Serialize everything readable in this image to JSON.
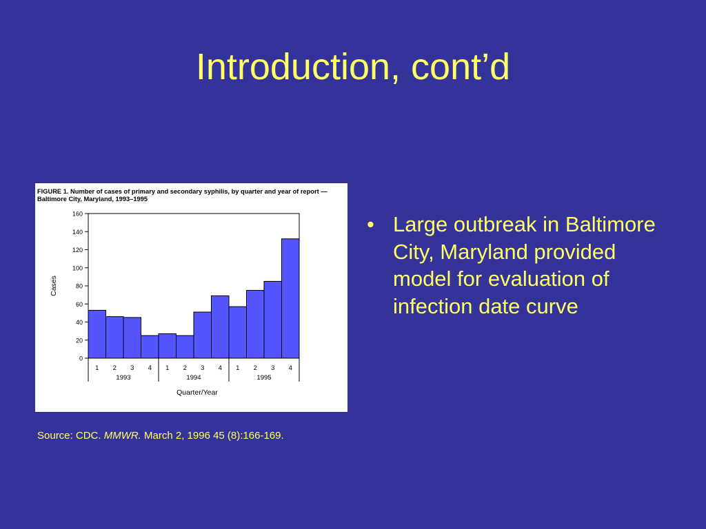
{
  "slide": {
    "title": "Introduction, cont’d",
    "bullets": [
      "Large outbreak in Baltimore City, Maryland provided model for evaluation of infection date curve"
    ]
  },
  "source": {
    "prefix": "Source: CDC. ",
    "journal": "MMWR.",
    "rest": " March 2, 1996 45 (8):166-169."
  },
  "figure": {
    "caption_lead": "FIGURE 1.",
    "caption_rest": " Number of cases of primary and secondary syphilis, by quarter and year of report — Baltimore City, Maryland, 1993–1995"
  },
  "colors": {
    "background": "#333399",
    "text": "#ffff66",
    "bar_fill": "#5555ff",
    "bar_stroke": "#000000"
  },
  "chart_data": {
    "type": "bar",
    "title": "FIGURE 1. Number of cases of primary and secondary syphilis, by quarter and year of report — Baltimore City, Maryland, 1993–1995",
    "categories": [
      "1",
      "2",
      "3",
      "4",
      "1",
      "2",
      "3",
      "4",
      "1",
      "2",
      "3",
      "4"
    ],
    "groups": [
      {
        "label": "1993",
        "count": 4
      },
      {
        "label": "1994",
        "count": 4
      },
      {
        "label": "1995",
        "count": 4
      }
    ],
    "values": [
      53,
      46,
      45,
      25,
      27,
      25,
      51,
      69,
      57,
      75,
      85,
      132
    ],
    "ylabel": "Cases",
    "xlabel": "Quarter/Year",
    "ylim": [
      0,
      160
    ],
    "yticks": [
      0,
      20,
      40,
      60,
      80,
      100,
      120,
      140,
      160
    ],
    "grid": false,
    "legend": "none"
  }
}
